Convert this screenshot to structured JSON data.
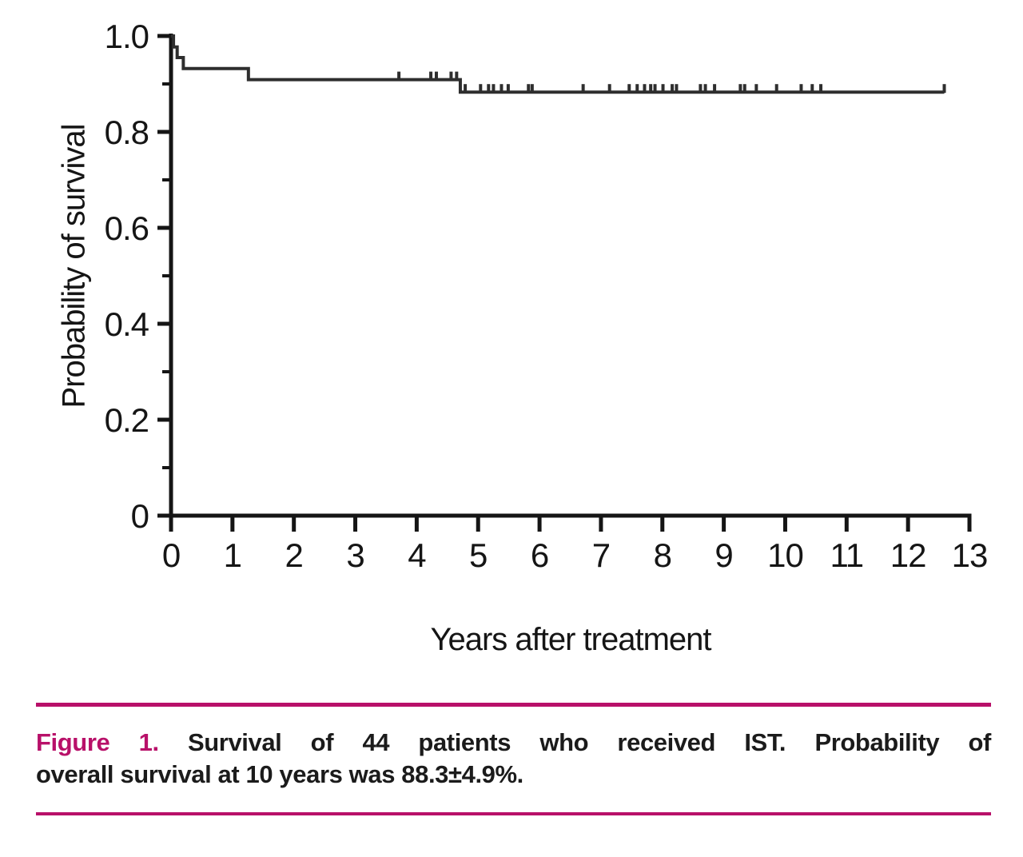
{
  "colors": {
    "accent": "#b81069",
    "curve": "#2e2e2e",
    "axis": "#151515"
  },
  "chart_data": {
    "type": "line",
    "subtype": "kaplan-meier-step",
    "title": "",
    "xlabel": "Years after treatment",
    "ylabel": "Probability of survival",
    "xlim": [
      0,
      13
    ],
    "ylim": [
      0,
      1.0
    ],
    "grid": false,
    "legend": null,
    "xticks": [
      0,
      1,
      2,
      3,
      4,
      5,
      6,
      7,
      8,
      9,
      10,
      11,
      12,
      13
    ],
    "ytick_values": [
      1.0,
      0.8,
      0.6,
      0.4,
      0.2,
      0
    ],
    "ytick_labels": [
      "1.0",
      "0.8",
      "0.6",
      "0.4",
      "0.2",
      "0"
    ],
    "ytick_minor": [
      0.9,
      0.7,
      0.5,
      0.3,
      0.1
    ],
    "series": [
      {
        "step_points": [
          [
            0,
            1.0
          ],
          [
            0.04,
            0.977
          ],
          [
            0.1,
            0.955
          ],
          [
            0.2,
            0.932
          ],
          [
            1.26,
            0.909
          ],
          [
            4.71,
            0.883
          ]
        ],
        "end_x": 12.59
      }
    ],
    "censor_marks": [
      [
        3.71,
        0.909
      ],
      [
        4.23,
        0.909
      ],
      [
        4.32,
        0.909
      ],
      [
        4.56,
        0.909
      ],
      [
        4.65,
        0.909
      ],
      [
        4.79,
        0.883
      ],
      [
        5.04,
        0.883
      ],
      [
        5.17,
        0.883
      ],
      [
        5.25,
        0.883
      ],
      [
        5.38,
        0.883
      ],
      [
        5.49,
        0.883
      ],
      [
        5.82,
        0.883
      ],
      [
        5.88,
        0.883
      ],
      [
        6.71,
        0.883
      ],
      [
        7.14,
        0.883
      ],
      [
        7.46,
        0.883
      ],
      [
        7.59,
        0.883
      ],
      [
        7.71,
        0.883
      ],
      [
        7.81,
        0.883
      ],
      [
        7.88,
        0.883
      ],
      [
        8.01,
        0.883
      ],
      [
        8.16,
        0.883
      ],
      [
        8.23,
        0.883
      ],
      [
        8.62,
        0.883
      ],
      [
        8.7,
        0.883
      ],
      [
        8.85,
        0.883
      ],
      [
        9.27,
        0.883
      ],
      [
        9.34,
        0.883
      ],
      [
        9.53,
        0.883
      ],
      [
        9.86,
        0.883
      ],
      [
        10.26,
        0.883
      ],
      [
        10.44,
        0.883
      ],
      [
        10.58,
        0.883
      ],
      [
        12.59,
        0.883
      ]
    ]
  },
  "caption": {
    "label": "Figure 1.",
    "line1": "Survival of 44 patients who received IST. Probability of",
    "line2": "overall survival at 10 years was 88.3±4.9%."
  }
}
